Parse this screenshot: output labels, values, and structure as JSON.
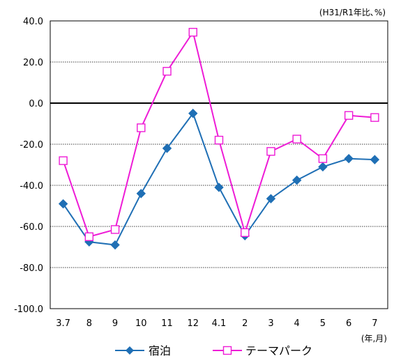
{
  "chart_data": {
    "type": "line",
    "units_label": "(H31/R1年比､%)",
    "axis_note": "(年,月)",
    "categories": [
      "3.7",
      "8",
      "9",
      "10",
      "11",
      "12",
      "4.1",
      "2",
      "3",
      "4",
      "5",
      "6",
      "7"
    ],
    "ylim": [
      -100,
      40
    ],
    "y_ticks": [
      "40.0",
      "20.0",
      "0.0",
      "-20.0",
      "-40.0",
      "-60.0",
      "-80.0",
      "-100.0"
    ],
    "y_tick_values": [
      40,
      20,
      0,
      -20,
      -40,
      -60,
      -80,
      -100
    ],
    "grid": true,
    "legend_position": "bottom",
    "series": [
      {
        "name": "宿泊",
        "color": "#1f6fb5",
        "marker": "diamond",
        "values": [
          -49.0,
          -67.5,
          -69.0,
          -44.0,
          -22.0,
          -5.0,
          -41.0,
          -64.5,
          -46.5,
          -37.5,
          -31.0,
          -27.0,
          -27.5
        ]
      },
      {
        "name": "テーマパーク",
        "color": "#ee1bd6",
        "marker": "square-open",
        "values": [
          -28.0,
          -65.0,
          -61.5,
          -12.0,
          15.5,
          34.5,
          -18.0,
          -63.0,
          -23.5,
          -17.5,
          -27.0,
          -6.0,
          -7.0
        ]
      }
    ]
  }
}
